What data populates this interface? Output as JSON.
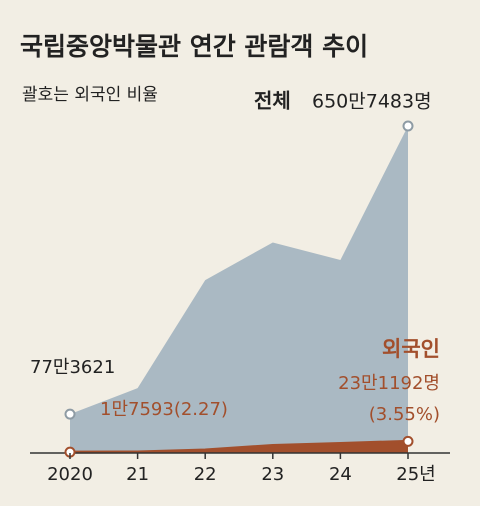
{
  "chart_data": {
    "type": "area",
    "title": "국립중앙박물관 연간 관람객 추이",
    "subtitle": "괄호는 외국인 비율",
    "categories": [
      "2020",
      "21",
      "22",
      "23",
      "24",
      "25년"
    ],
    "series": [
      {
        "name": "전체",
        "color": "#aab9c3",
        "values": [
          773621,
          1290000,
          3440000,
          4190000,
          3840000,
          6507483
        ],
        "value_labels": [
          "77만3621",
          null,
          null,
          null,
          null,
          "650만7483명"
        ]
      },
      {
        "name": "외국인",
        "color": "#a24f2c",
        "values": [
          17593,
          20000,
          60000,
          150000,
          190000,
          231192
        ],
        "value_labels": [
          "1만7593(2.27)",
          null,
          null,
          null,
          null,
          "23만1192명"
        ],
        "note": "(3.55%)"
      }
    ]
  }
}
